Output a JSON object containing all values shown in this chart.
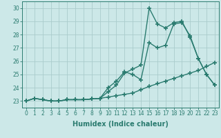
{
  "x": [
    0,
    1,
    2,
    3,
    4,
    5,
    6,
    7,
    8,
    9,
    10,
    11,
    12,
    13,
    14,
    15,
    16,
    17,
    18,
    19,
    20,
    21,
    22,
    23
  ],
  "line1": [
    23.0,
    23.2,
    23.1,
    23.0,
    23.0,
    23.1,
    23.1,
    23.1,
    23.15,
    23.2,
    23.3,
    23.4,
    23.5,
    23.6,
    23.85,
    24.1,
    24.3,
    24.5,
    24.7,
    24.9,
    25.1,
    25.3,
    25.6,
    25.9
  ],
  "line2": [
    23.0,
    23.2,
    23.1,
    23.0,
    23.0,
    23.1,
    23.1,
    23.1,
    23.15,
    23.2,
    24.0,
    24.5,
    25.2,
    25.0,
    24.6,
    27.4,
    27.0,
    27.2,
    28.8,
    28.9,
    27.9,
    26.2,
    25.0,
    24.2
  ],
  "line3": [
    23.0,
    23.2,
    23.1,
    23.0,
    23.0,
    23.1,
    23.1,
    23.1,
    23.15,
    23.2,
    23.7,
    24.2,
    25.1,
    25.4,
    25.7,
    30.0,
    28.8,
    28.5,
    28.9,
    29.0,
    27.8,
    26.2,
    25.0,
    24.2
  ],
  "line_color": "#2a7b6f",
  "bg_color": "#cce8e8",
  "grid_color": "#aacccc",
  "xlabel": "Humidex (Indice chaleur)",
  "ylim": [
    22.5,
    30.5
  ],
  "xlim": [
    -0.5,
    23.5
  ],
  "yticks": [
    23,
    24,
    25,
    26,
    27,
    28,
    29,
    30
  ],
  "xticks": [
    0,
    1,
    2,
    3,
    4,
    5,
    6,
    7,
    8,
    9,
    10,
    11,
    12,
    13,
    14,
    15,
    16,
    17,
    18,
    19,
    20,
    21,
    22,
    23
  ],
  "marker": "+",
  "markersize": 4,
  "linewidth": 1.0,
  "tick_fontsize": 5.5,
  "label_fontsize": 7.0
}
